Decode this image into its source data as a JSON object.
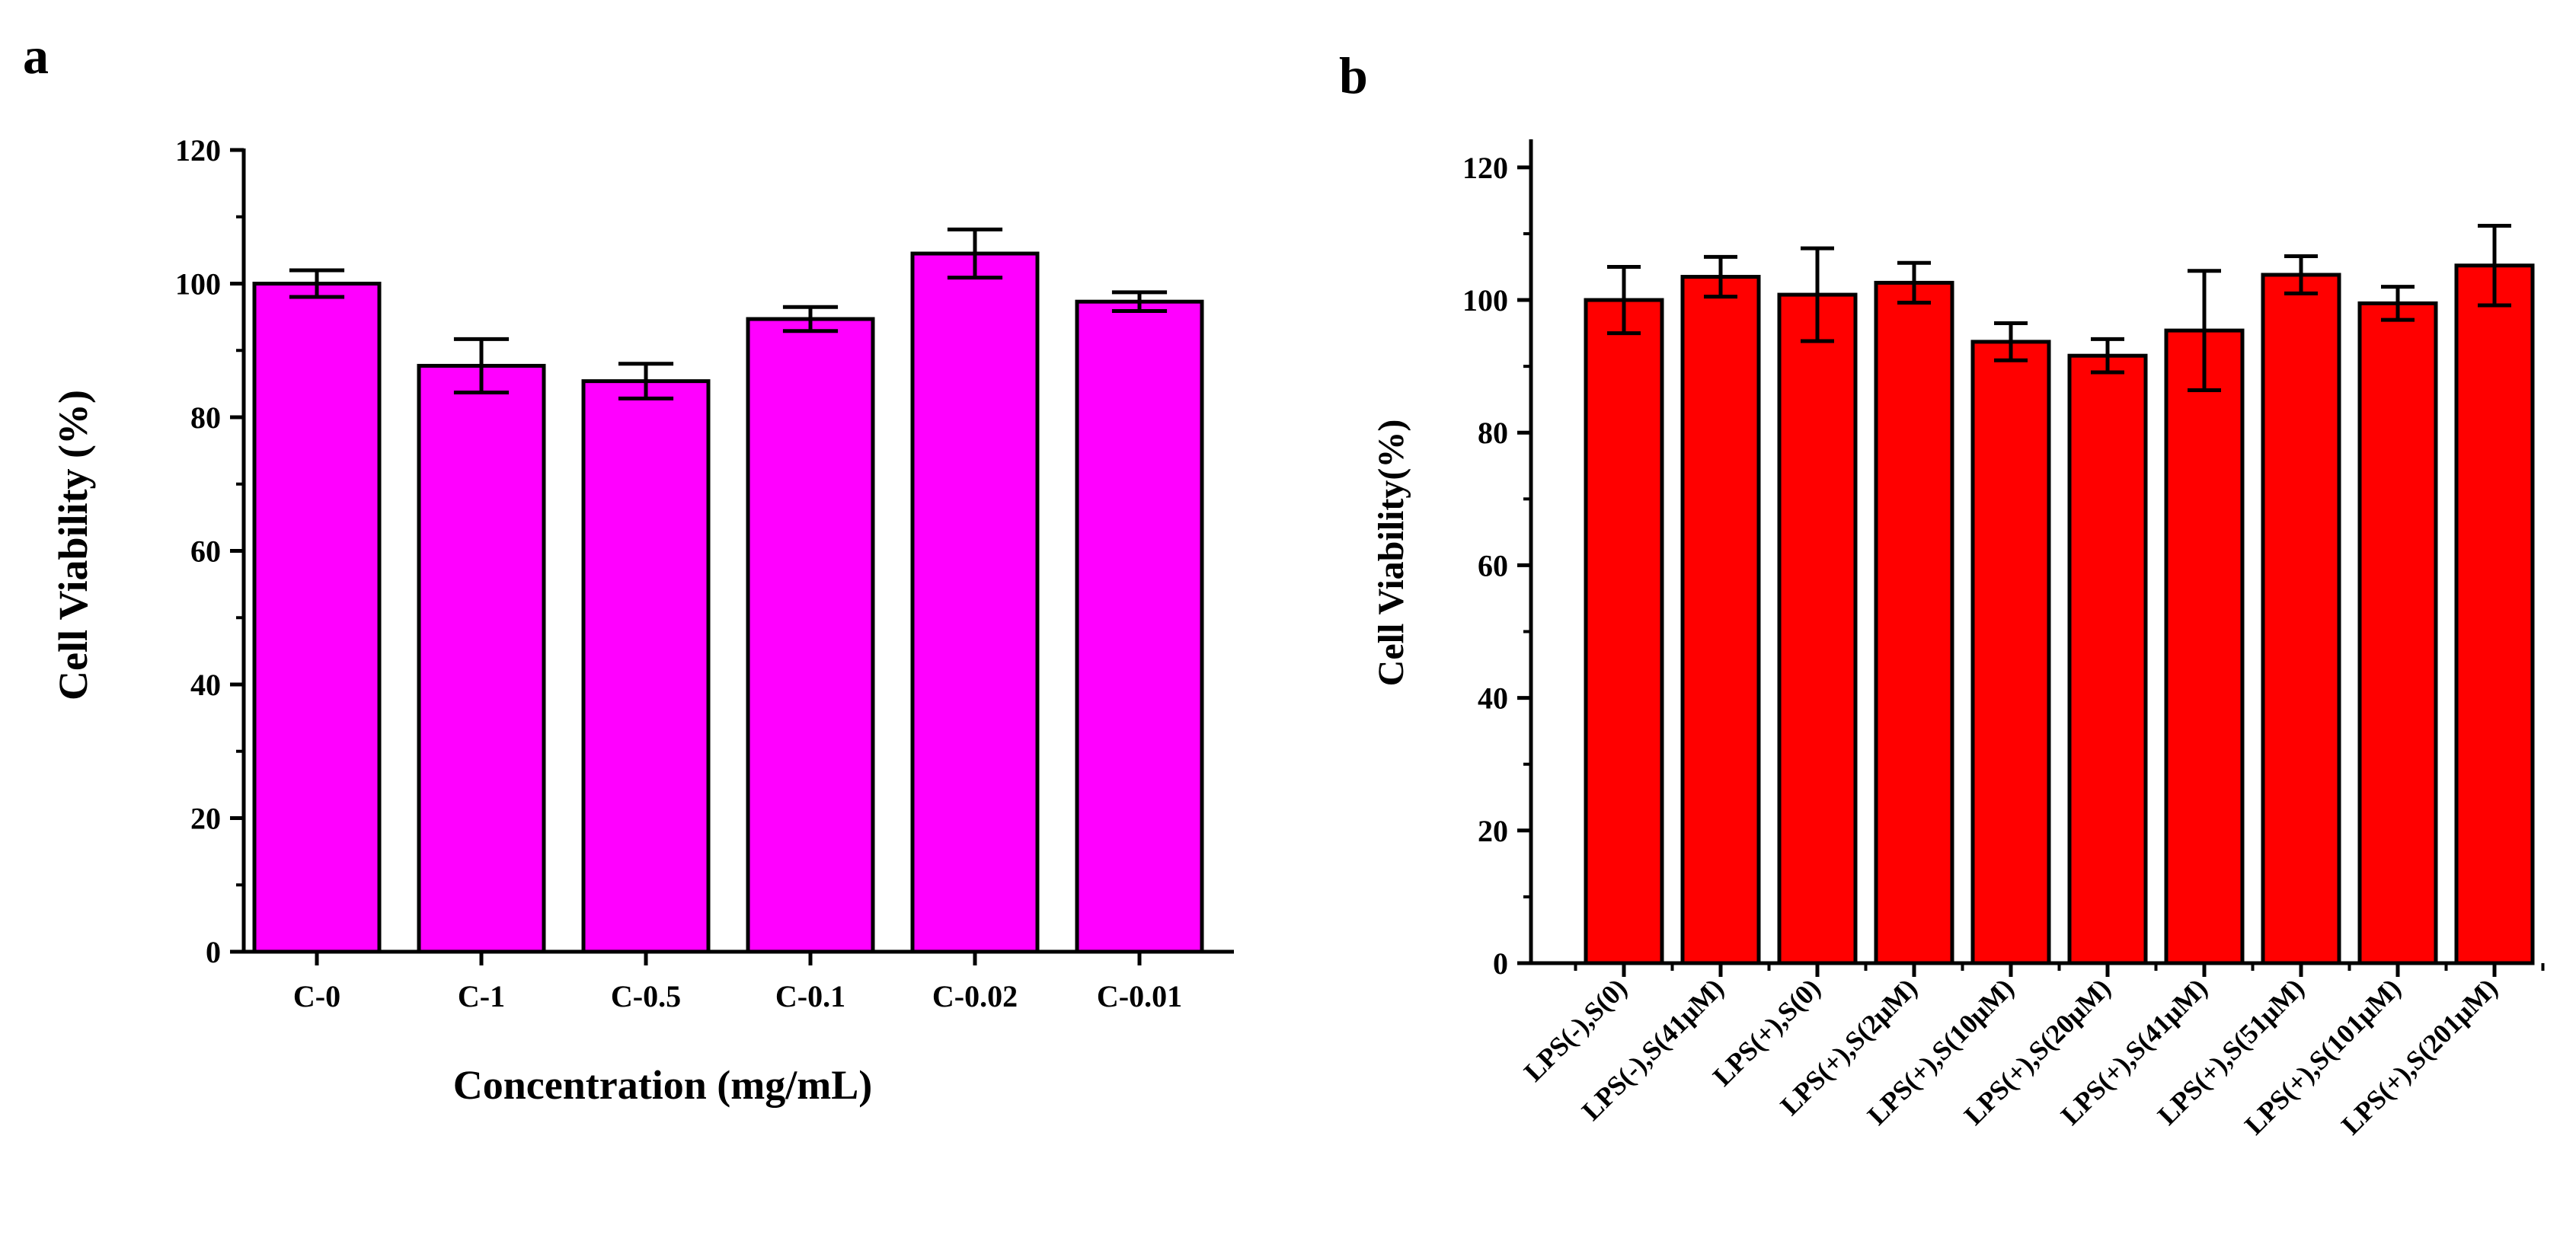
{
  "panels": [
    {
      "label": "a",
      "chart_data": {
        "type": "bar",
        "categories": [
          "C-0",
          "C-1",
          "C-0.5",
          "C-0.1",
          "C-0.02",
          "C-0.01"
        ],
        "values": [
          100,
          87.7,
          85.4,
          94.7,
          104.5,
          97.3
        ],
        "errors": [
          2.0,
          4.0,
          2.6,
          1.8,
          3.6,
          1.4
        ],
        "xlabel": "Concentration (mg/mL)",
        "ylabel": "Cell Viability (%)",
        "ylim": [
          0,
          120
        ],
        "yticks": [
          0,
          20,
          40,
          60,
          80,
          100,
          120
        ],
        "bar_color": "#FF00FF",
        "grid": false
      }
    },
    {
      "label": "b",
      "chart_data": {
        "type": "bar",
        "categories": [
          "LPS(-),S(0)",
          "LPS(-),S(41μM)",
          "LPS(+),S(0)",
          "LPS(+),S(2μM)",
          "LPS(+),S(10μM)",
          "LPS(+),S(20μM)",
          "LPS(+),S(41μM)",
          "LPS(+),S(51μM)",
          "LPS(+),S(101μM)",
          "LPS(+),S(201μM)"
        ],
        "values": [
          100,
          103.5,
          100.8,
          102.6,
          93.7,
          91.6,
          95.4,
          103.8,
          99.5,
          105.2
        ],
        "errors": [
          5.0,
          3.0,
          7.0,
          3.0,
          2.8,
          2.5,
          9.0,
          2.8,
          2.5,
          6.0
        ],
        "xlabel": "",
        "ylabel": "Cell Viability(%)",
        "ylim": [
          0,
          124
        ],
        "yticks": [
          0,
          20,
          40,
          60,
          80,
          100,
          120
        ],
        "bar_color": "#FF0000",
        "grid": false
      }
    }
  ]
}
